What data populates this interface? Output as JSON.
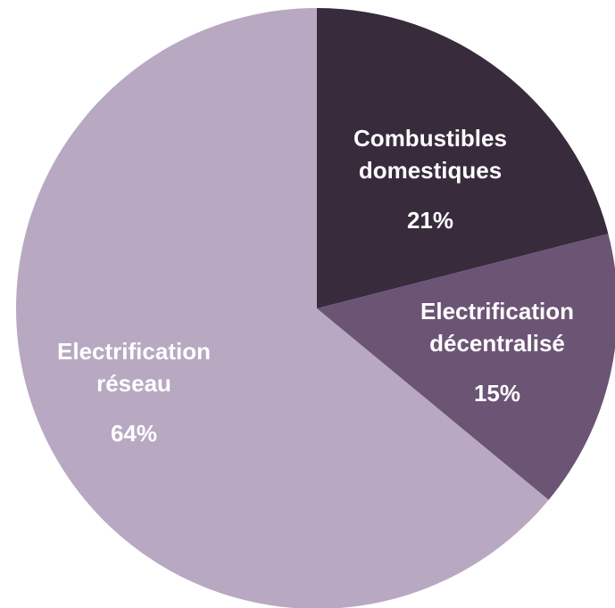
{
  "chart_data": {
    "type": "pie",
    "start_angle_deg": 0,
    "direction": "clockwise",
    "slices": [
      {
        "label_lines": [
          "Combustibles",
          "domestiques"
        ],
        "value": 21,
        "value_label": "21%",
        "color": "#372b3c"
      },
      {
        "label_lines": [
          "Electrification",
          "décentralisé"
        ],
        "value": 15,
        "value_label": "15%",
        "color": "#6b5474"
      },
      {
        "label_lines": [
          "Electrification",
          "réseau"
        ],
        "value": 64,
        "value_label": "64%",
        "color": "#b9a8c2"
      }
    ]
  }
}
